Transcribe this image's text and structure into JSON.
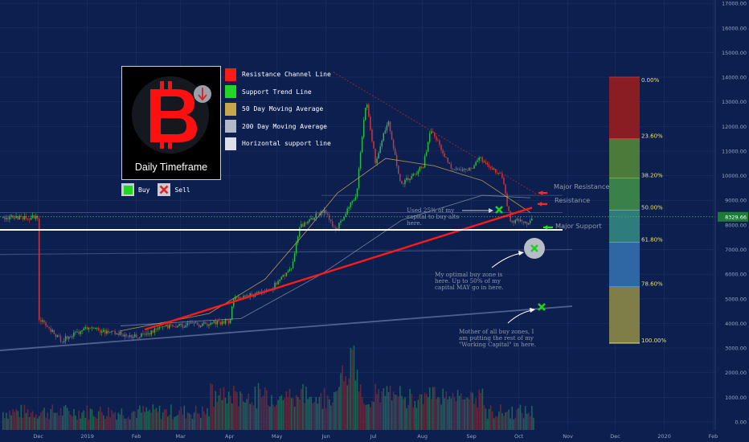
{
  "colors": {
    "background": "#0c1f4e",
    "resistance": "#ff1a1a",
    "support_trend": "#22d722",
    "ma50": "#c8a64b",
    "ma200": "#aab0c2",
    "horizontal_support": "#e6e8ef",
    "up_candle": "#2fb84a",
    "down_candle": "#d1323a"
  },
  "legend": {
    "items": [
      {
        "label": "Resistance Channel Line",
        "color": "#ff1a1a"
      },
      {
        "label": "Support Trend Line",
        "color": "#22d722"
      },
      {
        "label": "50 Day Moving Average",
        "color": "#c8a64b"
      },
      {
        "label": "200 Day Moving Average",
        "color": "#b4b9c8"
      },
      {
        "label": "Horizontal support line",
        "color": "#dcdfe8"
      }
    ],
    "buy_label": "Buy",
    "sell_label": "Sell"
  },
  "logo": {
    "caption": "Daily Timeframe",
    "icon": "bitcoin-icon",
    "arrow_icon": "down-arrow-icon"
  },
  "chart_data": {
    "type": "candlestick",
    "symbol": "BTC",
    "last_price": "8329.66",
    "y_ticks": [
      "17000.00",
      "16000.00",
      "15000.00",
      "14000.00",
      "13000.00",
      "12000.00",
      "11000.00",
      "10000.00",
      "9000.00",
      "8000.00",
      "7000.00",
      "6000.00",
      "5000.00",
      "4000.00",
      "3000.00",
      "2000.00",
      "1000.00",
      "0.00"
    ],
    "x_ticks": [
      "Dec",
      "2019",
      "Feb",
      "Mar",
      "Apr",
      "May",
      "Jun",
      "Jul",
      "Aug",
      "Sep",
      "Oct",
      "Nov",
      "Dec",
      "2020",
      "Feb"
    ],
    "ylim": [
      0,
      17000
    ],
    "price_path": [
      [
        "2018-12-01",
        4200
      ],
      [
        "2018-12-15",
        3300
      ],
      [
        "2018-12-31",
        3800
      ],
      [
        "2019-01-15",
        3650
      ],
      [
        "2019-02-01",
        3450
      ],
      [
        "2019-02-20",
        3900
      ],
      [
        "2019-03-15",
        3950
      ],
      [
        "2019-04-01",
        4100
      ],
      [
        "2019-04-03",
        5000
      ],
      [
        "2019-04-25",
        5300
      ],
      [
        "2019-05-10",
        6300
      ],
      [
        "2019-05-15",
        7900
      ],
      [
        "2019-05-30",
        8600
      ],
      [
        "2019-06-07",
        7800
      ],
      [
        "2019-06-20",
        9300
      ],
      [
        "2019-06-26",
        13100
      ],
      [
        "2019-07-02",
        10500
      ],
      [
        "2019-07-10",
        12300
      ],
      [
        "2019-07-18",
        9600
      ],
      [
        "2019-08-01",
        10400
      ],
      [
        "2019-08-06",
        11900
      ],
      [
        "2019-08-20",
        10200
      ],
      [
        "2019-09-01",
        10300
      ],
      [
        "2019-09-06",
        10700
      ],
      [
        "2019-09-20",
        10000
      ],
      [
        "2019-09-25",
        8200
      ],
      [
        "2019-10-05",
        8100
      ],
      [
        "2019-10-15",
        8300
      ]
    ],
    "fib_levels": [
      {
        "label": "0.00%",
        "price": 14000
      },
      {
        "label": "23.60%",
        "price": 11500
      },
      {
        "label": "38.20%",
        "price": 9900
      },
      {
        "label": "50.00%",
        "price": 8600
      },
      {
        "label": "61.80%",
        "price": 7300
      },
      {
        "label": "78.60%",
        "price": 5500
      },
      {
        "label": "100.00%",
        "price": 3200
      }
    ],
    "annotations": {
      "major_resistance": "Major Resistance",
      "resistance": "Resistance",
      "major_support": "Major Support",
      "used_25": [
        "Used 25% of my",
        "capital to buy alts",
        "here."
      ],
      "optimal_zone": [
        "My optimal buy zone is",
        "here. Up to 50% of my",
        "capital MAY go in here."
      ],
      "mother_zone": [
        "Mother of all buy zones, I",
        "am putting the rest of my",
        "\"Working Capital\" in here."
      ]
    }
  }
}
